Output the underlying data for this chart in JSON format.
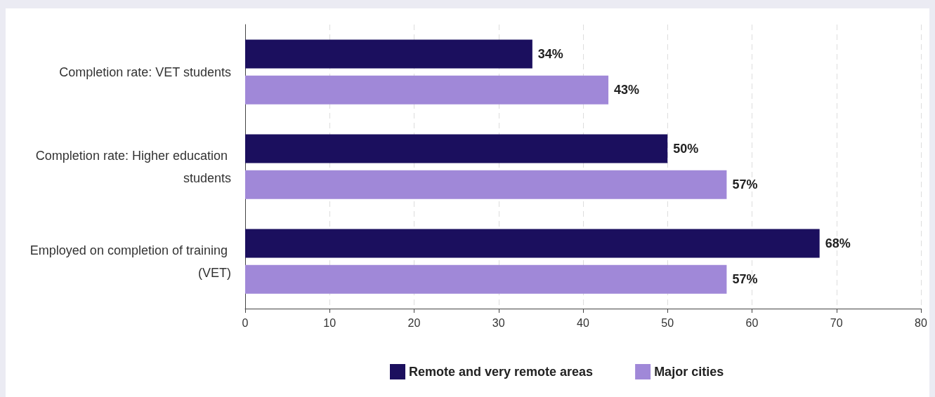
{
  "chart_data": {
    "type": "bar",
    "orientation": "horizontal",
    "categories": [
      "Completion rate: VET students",
      "Completion rate: Higher education students",
      "Employed on completion of training (VET)"
    ],
    "series": [
      {
        "name": "Remote and very remote areas",
        "color": "#1b0f5e",
        "values": [
          34,
          50,
          68
        ],
        "value_labels": [
          "34%",
          "50%",
          "68%"
        ]
      },
      {
        "name": "Major cities",
        "color": "#a088d8",
        "values": [
          43,
          57,
          57
        ],
        "value_labels": [
          "43%",
          "57%",
          "57%"
        ]
      }
    ],
    "xlim": [
      0,
      80
    ],
    "xticks": [
      0,
      10,
      20,
      30,
      40,
      50,
      60,
      70,
      80
    ],
    "grid": "x",
    "legend": "bottom"
  }
}
